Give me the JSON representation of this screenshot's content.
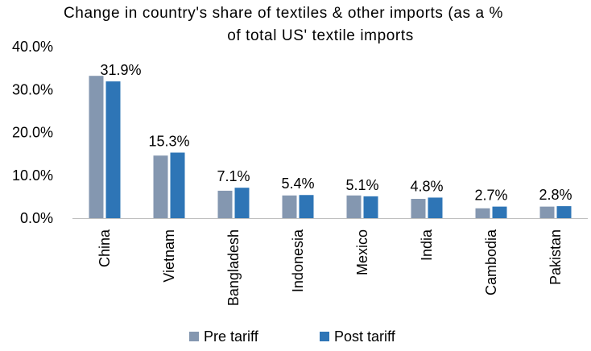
{
  "chart_data": {
    "type": "bar",
    "title_lines": [
      "Change in country's share of textiles & other imports (as a %",
      "of total US' textile imports"
    ],
    "categories": [
      "China",
      "Vietnam",
      "Bangladesh",
      "Indonesia",
      "Mexico",
      "India",
      "Cambodia",
      "Pakistan"
    ],
    "series": [
      {
        "name": "Pre tariff",
        "color": "#8497B0",
        "values": [
          33.2,
          14.6,
          6.4,
          5.3,
          5.3,
          4.5,
          2.3,
          2.7
        ]
      },
      {
        "name": "Post tariff",
        "color": "#2E75B6",
        "values": [
          31.9,
          15.3,
          7.1,
          5.4,
          5.1,
          4.8,
          2.7,
          2.8
        ]
      }
    ],
    "data_labels": [
      "31.9%",
      "15.3%",
      "7.1%",
      "5.4%",
      "5.1%",
      "4.8%",
      "2.7%",
      "2.8%"
    ],
    "y_ticks": [
      "0.0%",
      "10.0%",
      "20.0%",
      "30.0%",
      "40.0%"
    ],
    "ylim": [
      0,
      40
    ],
    "grid": false,
    "legend_position": "bottom"
  }
}
